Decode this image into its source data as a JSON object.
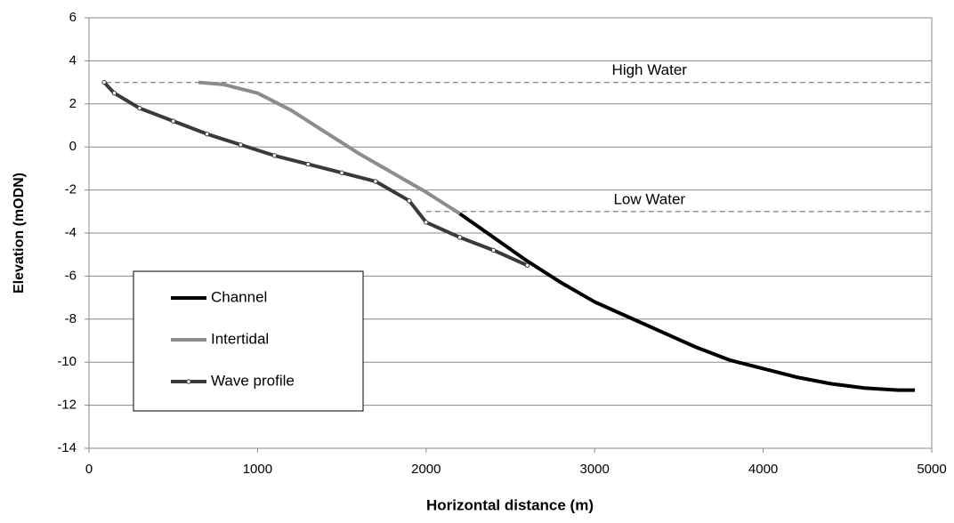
{
  "chart_data": {
    "type": "line",
    "x_label": "Horizontal distance (m)",
    "y_label": "Elevation (mODN)",
    "xlim": [
      0,
      5000
    ],
    "xticks": [
      0,
      1000,
      2000,
      3000,
      4000,
      5000
    ],
    "ylim": [
      -14,
      6
    ],
    "yticks": [
      -14,
      -12,
      -10,
      -8,
      -6,
      -4,
      -2,
      0,
      2,
      4,
      6
    ],
    "grid": true,
    "legend": "lower left",
    "series": [
      {
        "name": "Channel",
        "color": "#000000",
        "marker": false,
        "x": [
          2200,
          2400,
          2600,
          2800,
          3000,
          3200,
          3400,
          3600,
          3800,
          4000,
          4200,
          4400,
          4600,
          4800,
          4900
        ],
        "values": [
          -3.1,
          -4.2,
          -5.3,
          -6.3,
          -7.2,
          -7.9,
          -8.6,
          -9.3,
          -9.9,
          -10.3,
          -10.7,
          -11.0,
          -11.2,
          -11.3,
          -11.3
        ]
      },
      {
        "name": "Intertidal",
        "color": "#8c8c8c",
        "marker": false,
        "x": [
          650,
          800,
          1000,
          1200,
          1400,
          1600,
          1800,
          2000,
          2200
        ],
        "values": [
          3,
          2.9,
          2.5,
          1.7,
          0.7,
          -0.3,
          -1.2,
          -2.1,
          -3.1
        ]
      },
      {
        "name": "Wave profile",
        "color": "#3a3a3a",
        "marker": true,
        "x": [
          90,
          150,
          300,
          500,
          700,
          900,
          1100,
          1300,
          1500,
          1700,
          1900,
          2000,
          2200,
          2400,
          2600
        ],
        "values": [
          3,
          2.5,
          1.8,
          1.2,
          0.6,
          0.1,
          -0.4,
          -0.8,
          -1.2,
          -1.6,
          -2.5,
          -3.5,
          -4.2,
          -4.8,
          -5.5
        ]
      }
    ],
    "annotations": [
      {
        "text": "High Water",
        "y": 3,
        "x_start": 100,
        "x_end": 5000
      },
      {
        "text": "Low Water",
        "y": -3,
        "x_start": 2000,
        "x_end": 5000
      }
    ]
  }
}
